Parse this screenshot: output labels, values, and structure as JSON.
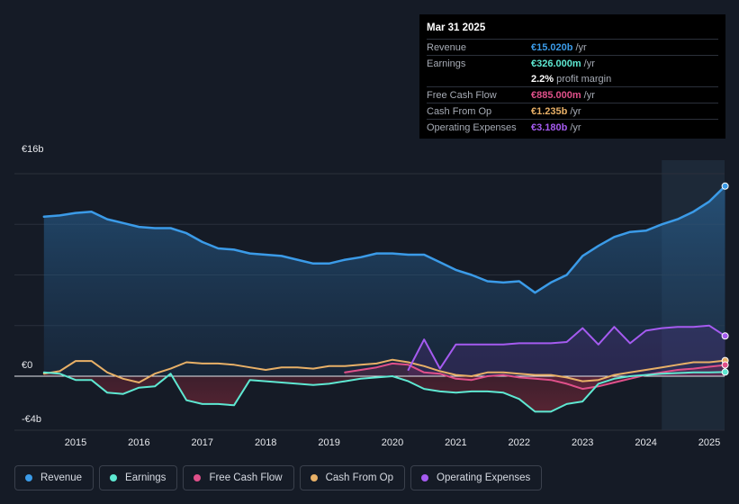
{
  "tooltip": {
    "date": "Mar 31 2025",
    "rows": [
      {
        "label": "Revenue",
        "value": "€15.020b",
        "unit": "/yr",
        "color": "#3b9be8"
      },
      {
        "label": "Earnings",
        "value": "€326.000m",
        "unit": "/yr",
        "color": "#5ee8d2"
      },
      {
        "label": "",
        "value": "2.2%",
        "unit": "profit margin",
        "color": "#ffffff"
      },
      {
        "label": "Free Cash Flow",
        "value": "€885.000m",
        "unit": "/yr",
        "color": "#e0508a"
      },
      {
        "label": "Cash From Op",
        "value": "€1.235b",
        "unit": "/yr",
        "color": "#e8b067"
      },
      {
        "label": "Operating Expenses",
        "value": "€3.180b",
        "unit": "/yr",
        "color": "#a55bf0"
      }
    ]
  },
  "legend": [
    {
      "label": "Revenue",
      "color": "#3b9be8"
    },
    {
      "label": "Earnings",
      "color": "#5ee8d2"
    },
    {
      "label": "Free Cash Flow",
      "color": "#e0508a"
    },
    {
      "label": "Cash From Op",
      "color": "#e8b067"
    },
    {
      "label": "Operating Expenses",
      "color": "#a55bf0"
    }
  ],
  "chart_data": {
    "type": "area",
    "y_unit": "€b",
    "ylim": [
      -4,
      16
    ],
    "xlim": [
      2014.2,
      2025.3
    ],
    "y_tick_labels": [
      "€16b",
      "€0",
      "-€4b"
    ],
    "y_tick_values": [
      16,
      0,
      -4
    ],
    "x_tick_labels": [
      "2015",
      "2016",
      "2017",
      "2018",
      "2019",
      "2020",
      "2021",
      "2022",
      "2023",
      "2024",
      "2025"
    ],
    "x_tick_values": [
      2015,
      2016,
      2017,
      2018,
      2019,
      2020,
      2021,
      2022,
      2023,
      2024,
      2025
    ],
    "highlight_from": 2024.25,
    "series": [
      {
        "name": "Revenue",
        "color": "#3b9be8",
        "points": [
          [
            2014.5,
            12.6
          ],
          [
            2014.75,
            12.7
          ],
          [
            2015.0,
            12.9
          ],
          [
            2015.25,
            13.0
          ],
          [
            2015.5,
            12.4
          ],
          [
            2015.75,
            12.1
          ],
          [
            2016.0,
            11.8
          ],
          [
            2016.25,
            11.7
          ],
          [
            2016.5,
            11.7
          ],
          [
            2016.75,
            11.3
          ],
          [
            2017.0,
            10.6
          ],
          [
            2017.25,
            10.1
          ],
          [
            2017.5,
            10.0
          ],
          [
            2017.75,
            9.7
          ],
          [
            2018.0,
            9.6
          ],
          [
            2018.25,
            9.5
          ],
          [
            2018.5,
            9.2
          ],
          [
            2018.75,
            8.9
          ],
          [
            2019.0,
            8.9
          ],
          [
            2019.25,
            9.2
          ],
          [
            2019.5,
            9.4
          ],
          [
            2019.75,
            9.7
          ],
          [
            2020.0,
            9.7
          ],
          [
            2020.25,
            9.6
          ],
          [
            2020.5,
            9.6
          ],
          [
            2020.75,
            9.0
          ],
          [
            2021.0,
            8.4
          ],
          [
            2021.25,
            8.0
          ],
          [
            2021.5,
            7.5
          ],
          [
            2021.75,
            7.4
          ],
          [
            2022.0,
            7.5
          ],
          [
            2022.25,
            6.6
          ],
          [
            2022.5,
            7.4
          ],
          [
            2022.75,
            8.0
          ],
          [
            2023.0,
            9.5
          ],
          [
            2023.25,
            10.3
          ],
          [
            2023.5,
            11.0
          ],
          [
            2023.75,
            11.4
          ],
          [
            2024.0,
            11.5
          ],
          [
            2024.25,
            12.0
          ],
          [
            2024.5,
            12.4
          ],
          [
            2024.75,
            13.0
          ],
          [
            2025.0,
            13.8
          ],
          [
            2025.25,
            15.02
          ]
        ]
      },
      {
        "name": "Earnings",
        "color": "#5ee8d2",
        "points": [
          [
            2014.5,
            0.3
          ],
          [
            2014.75,
            0.2
          ],
          [
            2015.0,
            -0.3
          ],
          [
            2015.25,
            -0.3
          ],
          [
            2015.5,
            -1.3
          ],
          [
            2015.75,
            -1.4
          ],
          [
            2016.0,
            -0.9
          ],
          [
            2016.25,
            -0.8
          ],
          [
            2016.5,
            0.2
          ],
          [
            2016.75,
            -1.9
          ],
          [
            2017.0,
            -2.2
          ],
          [
            2017.25,
            -2.2
          ],
          [
            2017.5,
            -2.3
          ],
          [
            2017.75,
            -0.3
          ],
          [
            2018.0,
            -0.4
          ],
          [
            2018.25,
            -0.5
          ],
          [
            2018.5,
            -0.6
          ],
          [
            2018.75,
            -0.7
          ],
          [
            2019.0,
            -0.6
          ],
          [
            2019.25,
            -0.4
          ],
          [
            2019.5,
            -0.2
          ],
          [
            2019.75,
            -0.1
          ],
          [
            2020.0,
            0.0
          ],
          [
            2020.25,
            -0.4
          ],
          [
            2020.5,
            -1.0
          ],
          [
            2020.75,
            -1.2
          ],
          [
            2021.0,
            -1.3
          ],
          [
            2021.25,
            -1.2
          ],
          [
            2021.5,
            -1.2
          ],
          [
            2021.75,
            -1.3
          ],
          [
            2022.0,
            -1.8
          ],
          [
            2022.25,
            -2.8
          ],
          [
            2022.5,
            -2.8
          ],
          [
            2022.75,
            -2.2
          ],
          [
            2023.0,
            -2.0
          ],
          [
            2023.25,
            -0.6
          ],
          [
            2023.5,
            -0.2
          ],
          [
            2023.75,
            0.0
          ],
          [
            2024.0,
            0.1
          ],
          [
            2024.25,
            0.2
          ],
          [
            2024.5,
            0.25
          ],
          [
            2024.75,
            0.3
          ],
          [
            2025.0,
            0.3
          ],
          [
            2025.25,
            0.326
          ]
        ]
      },
      {
        "name": "Free Cash Flow",
        "color": "#e0508a",
        "points": [
          [
            2019.25,
            0.3
          ],
          [
            2019.5,
            0.5
          ],
          [
            2019.75,
            0.7
          ],
          [
            2020.0,
            1.0
          ],
          [
            2020.25,
            0.9
          ],
          [
            2020.5,
            0.3
          ],
          [
            2020.75,
            0.2
          ],
          [
            2021.0,
            -0.2
          ],
          [
            2021.25,
            -0.3
          ],
          [
            2021.5,
            0.0
          ],
          [
            2021.75,
            0.1
          ],
          [
            2022.0,
            -0.1
          ],
          [
            2022.25,
            -0.2
          ],
          [
            2022.5,
            -0.3
          ],
          [
            2022.75,
            -0.6
          ],
          [
            2023.0,
            -1.0
          ],
          [
            2023.25,
            -0.8
          ],
          [
            2023.5,
            -0.5
          ],
          [
            2023.75,
            -0.2
          ],
          [
            2024.0,
            0.1
          ],
          [
            2024.25,
            0.3
          ],
          [
            2024.5,
            0.5
          ],
          [
            2024.75,
            0.6
          ],
          [
            2025.0,
            0.75
          ],
          [
            2025.25,
            0.885
          ]
        ]
      },
      {
        "name": "Cash From Op",
        "color": "#e8b067",
        "points": [
          [
            2014.5,
            0.2
          ],
          [
            2014.75,
            0.4
          ],
          [
            2015.0,
            1.2
          ],
          [
            2015.25,
            1.2
          ],
          [
            2015.5,
            0.3
          ],
          [
            2015.75,
            -0.2
          ],
          [
            2016.0,
            -0.5
          ],
          [
            2016.25,
            0.2
          ],
          [
            2016.5,
            0.6
          ],
          [
            2016.75,
            1.1
          ],
          [
            2017.0,
            1.0
          ],
          [
            2017.25,
            1.0
          ],
          [
            2017.5,
            0.9
          ],
          [
            2017.75,
            0.7
          ],
          [
            2018.0,
            0.5
          ],
          [
            2018.25,
            0.7
          ],
          [
            2018.5,
            0.7
          ],
          [
            2018.75,
            0.6
          ],
          [
            2019.0,
            0.8
          ],
          [
            2019.25,
            0.8
          ],
          [
            2019.5,
            0.9
          ],
          [
            2019.75,
            1.0
          ],
          [
            2020.0,
            1.3
          ],
          [
            2020.25,
            1.1
          ],
          [
            2020.5,
            0.8
          ],
          [
            2020.75,
            0.4
          ],
          [
            2021.0,
            0.1
          ],
          [
            2021.25,
            0.0
          ],
          [
            2021.5,
            0.3
          ],
          [
            2021.75,
            0.3
          ],
          [
            2022.0,
            0.2
          ],
          [
            2022.25,
            0.1
          ],
          [
            2022.5,
            0.1
          ],
          [
            2022.75,
            -0.1
          ],
          [
            2023.0,
            -0.4
          ],
          [
            2023.25,
            -0.3
          ],
          [
            2023.5,
            0.1
          ],
          [
            2023.75,
            0.3
          ],
          [
            2024.0,
            0.5
          ],
          [
            2024.25,
            0.7
          ],
          [
            2024.5,
            0.9
          ],
          [
            2024.75,
            1.1
          ],
          [
            2025.0,
            1.1
          ],
          [
            2025.25,
            1.235
          ]
        ]
      },
      {
        "name": "Operating Expenses",
        "color": "#a55bf0",
        "points": [
          [
            2020.25,
            0.5
          ],
          [
            2020.5,
            2.9
          ],
          [
            2020.75,
            0.6
          ],
          [
            2021.0,
            2.5
          ],
          [
            2021.25,
            2.5
          ],
          [
            2021.5,
            2.5
          ],
          [
            2021.75,
            2.5
          ],
          [
            2022.0,
            2.6
          ],
          [
            2022.25,
            2.6
          ],
          [
            2022.5,
            2.6
          ],
          [
            2022.75,
            2.7
          ],
          [
            2023.0,
            3.8
          ],
          [
            2023.25,
            2.5
          ],
          [
            2023.5,
            3.9
          ],
          [
            2023.75,
            2.6
          ],
          [
            2024.0,
            3.6
          ],
          [
            2024.25,
            3.8
          ],
          [
            2024.5,
            3.9
          ],
          [
            2024.75,
            3.9
          ],
          [
            2025.0,
            4.0
          ],
          [
            2025.25,
            3.18
          ]
        ]
      }
    ]
  }
}
